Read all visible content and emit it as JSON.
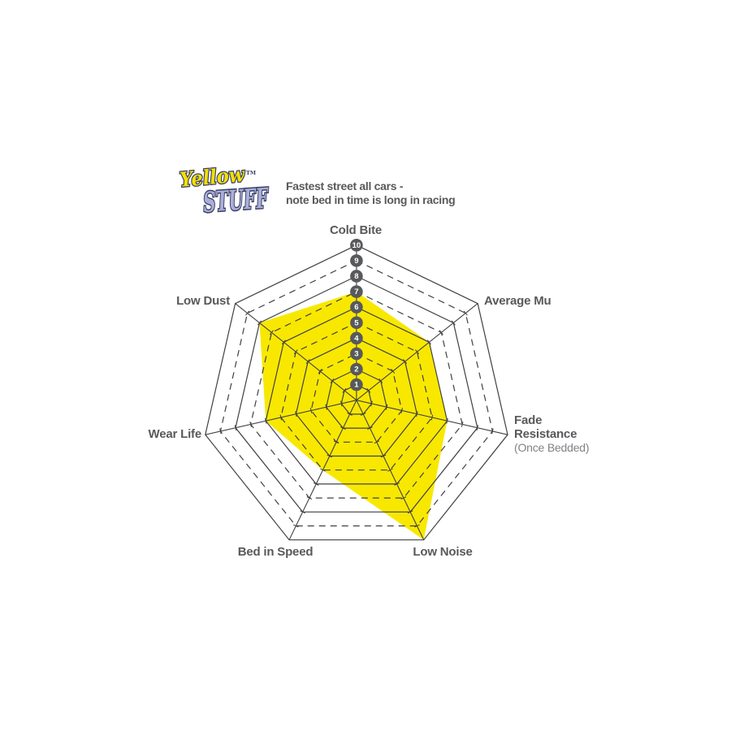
{
  "logo": {
    "word1": "Yellow",
    "tm": "TM",
    "word2": "STUFF",
    "word1_color": "#f2e005",
    "word2_color": "#a9afd7",
    "outline_color": "#3b3f66"
  },
  "tagline": {
    "line1": "Fastest street all cars -",
    "line2": "note bed in time is long in racing",
    "color": "#58595b"
  },
  "chart_data": {
    "type": "radar",
    "categories": [
      "Cold Bite",
      "Average Mu",
      "Fade Resistance (Once Bedded)",
      "Low Noise",
      "Bed in Speed",
      "Wear Life",
      "Low Dust"
    ],
    "series": [
      {
        "name": "Yellowstuff",
        "values": [
          7,
          6,
          6,
          10,
          5,
          6,
          8
        ]
      }
    ],
    "scale": {
      "min": 0,
      "max": 10,
      "tick_labels": [
        "1",
        "2",
        "3",
        "4",
        "5",
        "6",
        "7",
        "8",
        "9",
        "10"
      ]
    },
    "grid": {
      "rings": 10,
      "odd_rings_dashed": true,
      "spokes": true,
      "tick_marks": true
    },
    "legend_position": "none",
    "style": {
      "fill_color": "#F8E800",
      "grid_color": "#414042",
      "badge_color": "#58595b",
      "badge_text_color": "#ffffff",
      "label_color": "#58595b",
      "sublabel_color": "#808285"
    },
    "labels": {
      "cold_bite": "Cold Bite",
      "average_mu": "Average Mu",
      "fade_line1": "Fade",
      "fade_line2": "Resistance",
      "fade_sub": "(Once Bedded)",
      "low_noise": "Low Noise",
      "bed_in_speed": "Bed in Speed",
      "wear_life": "Wear Life",
      "low_dust": "Low Dust"
    }
  }
}
